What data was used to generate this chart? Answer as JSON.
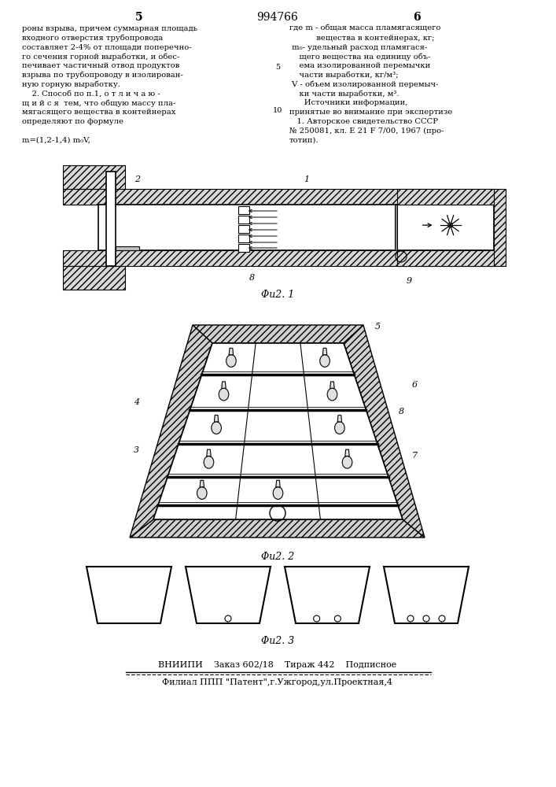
{
  "page_number_left": "5",
  "page_number_center": "994766",
  "page_number_right": "6",
  "fig1_caption": "Φu2. 1",
  "fig2_caption": "Φu2. 2",
  "fig3_caption": "Φu2. 3",
  "footer_line1": "ВНИИПИ    Заказ 602/18    Тираж 442    Подписное",
  "footer_line2": "Филиал ППП \"Патент\",г.Ужгород,ул.Проектная,4",
  "bg_color": "#ffffff",
  "text_color": "#000000",
  "col1_lines": [
    "роны взрыва, причем суммарная площадь",
    "входного отверстия трубопровода",
    "составляет 2-4% от площади поперечно-",
    "го сечения горной выработки, и обес-",
    "печивает частичный отвод продуктов",
    "взрыва по трубопроводу в изолирован-",
    "ную горную выработку.",
    "    2. Способ по п.1, о т л и ч а ю -",
    "щ и й с я  тем, что общую массу пла-",
    "мягасящего вещества в контейнерах",
    "определяют по формуле",
    "",
    "m=(1,2-1,4) m₀V,"
  ],
  "col2_lines": [
    "где m - общая масса пламягасящего",
    "           вещества в контейнерах, кг;",
    " m₀- удельный расход пламягася-",
    "    щего вещества на единицу объ-",
    "    ема изолированной перемычки",
    "    части выработки, кг/м³;",
    " V - объем изолированной перемыч-",
    "    ки части выработки, м³.",
    "      Источники информации,",
    "принятые во внимание при экспертизе",
    "   1. Авторское свидетельство СССР",
    "№ 250081, кл. Е 21 F 7/00, 1967 (про-",
    "тотип)."
  ],
  "line_markers": [
    {
      "text": "5",
      "line": 5
    },
    {
      "text": "10",
      "line": 9
    }
  ]
}
